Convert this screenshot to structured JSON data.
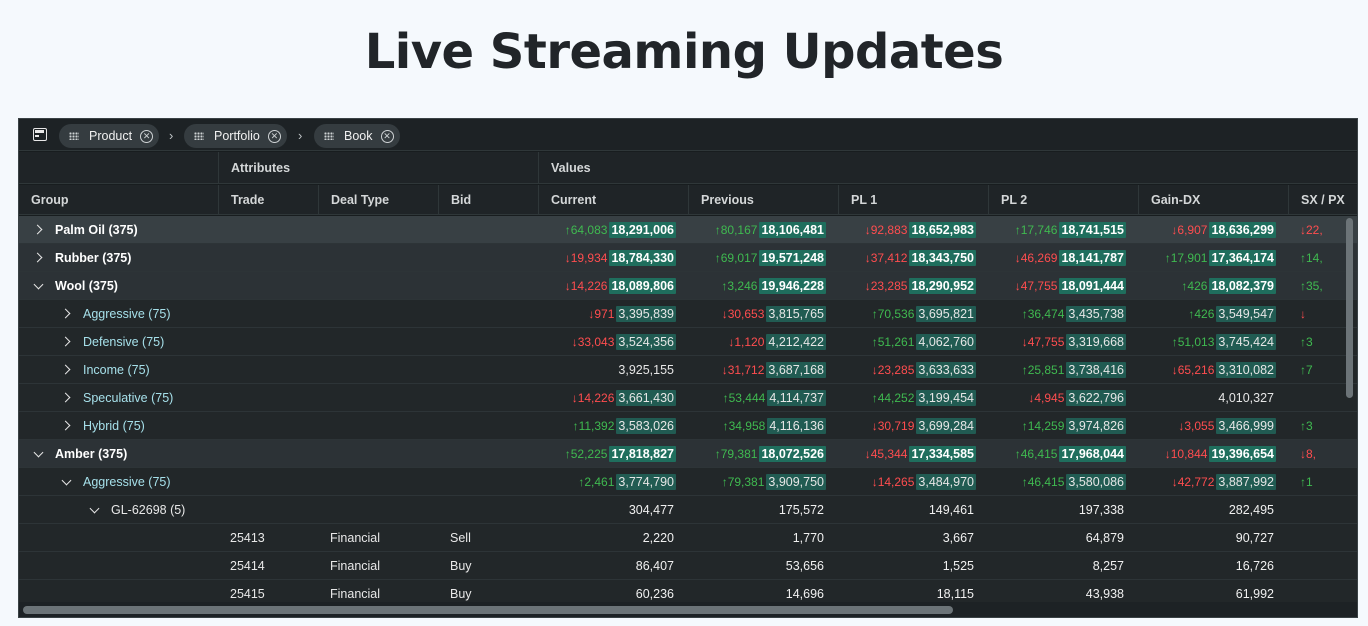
{
  "page_title": "Live Streaming Updates",
  "group_bar": {
    "chips": [
      {
        "label": "Product"
      },
      {
        "label": "Portfolio"
      },
      {
        "label": "Book"
      }
    ],
    "separator": "›"
  },
  "header": {
    "column_groups": [
      "Attributes",
      "Values"
    ],
    "columns": [
      "Group",
      "Trade",
      "Deal Type",
      "Bid",
      "Current",
      "Previous",
      "PL 1",
      "PL 2",
      "Gain-DX",
      "SX / PX"
    ]
  },
  "colors": {
    "up": "#3fb950",
    "down": "#ff4d4f",
    "highlight": "#1f6e5d"
  },
  "rows": [
    {
      "level": 1,
      "expanded": false,
      "label": "Palm Oil (375)",
      "cells": [
        {
          "d": "↑64,083",
          "dir": "up",
          "v": "18,291,006",
          "hl": true
        },
        {
          "d": "↑80,167",
          "dir": "up",
          "v": "18,106,481",
          "hl": true
        },
        {
          "d": "↓92,883",
          "dir": "down",
          "v": "18,652,983",
          "hl": true
        },
        {
          "d": "↑17,746",
          "dir": "up",
          "v": "18,741,515",
          "hl": true
        },
        {
          "d": "↓6,907",
          "dir": "down",
          "v": "18,636,299",
          "hl": true
        },
        {
          "d": "↓22,",
          "dir": "down",
          "v": "",
          "hl": false
        }
      ]
    },
    {
      "level": 1,
      "expanded": false,
      "label": "Rubber (375)",
      "cells": [
        {
          "d": "↓19,934",
          "dir": "down",
          "v": "18,784,330",
          "hl": true
        },
        {
          "d": "↑69,017",
          "dir": "up",
          "v": "19,571,248",
          "hl": true
        },
        {
          "d": "↓37,412",
          "dir": "down",
          "v": "18,343,750",
          "hl": true
        },
        {
          "d": "↓46,269",
          "dir": "down",
          "v": "18,141,787",
          "hl": true
        },
        {
          "d": "↑17,901",
          "dir": "up",
          "v": "17,364,174",
          "hl": true
        },
        {
          "d": "↑14,",
          "dir": "up",
          "v": "",
          "hl": false
        }
      ]
    },
    {
      "level": 1,
      "expanded": true,
      "label": "Wool (375)",
      "cells": [
        {
          "d": "↓14,226",
          "dir": "down",
          "v": "18,089,806",
          "hl": true
        },
        {
          "d": "↑3,246",
          "dir": "up",
          "v": "19,946,228",
          "hl": true
        },
        {
          "d": "↓23,285",
          "dir": "down",
          "v": "18,290,952",
          "hl": true
        },
        {
          "d": "↓47,755",
          "dir": "down",
          "v": "18,091,444",
          "hl": true
        },
        {
          "d": "↑426",
          "dir": "up",
          "v": "18,082,379",
          "hl": true
        },
        {
          "d": "↑35,",
          "dir": "up",
          "v": "",
          "hl": false
        }
      ]
    },
    {
      "level": 2,
      "expanded": false,
      "label": "Aggressive (75)",
      "cells": [
        {
          "d": "↓971",
          "dir": "down",
          "v": "3,395,839",
          "hl": true
        },
        {
          "d": "↓30,653",
          "dir": "down",
          "v": "3,815,765",
          "hl": true
        },
        {
          "d": "↑70,536",
          "dir": "up",
          "v": "3,695,821",
          "hl": true
        },
        {
          "d": "↑36,474",
          "dir": "up",
          "v": "3,435,738",
          "hl": true
        },
        {
          "d": "↑426",
          "dir": "up",
          "v": "3,549,547",
          "hl": true
        },
        {
          "d": "↓",
          "dir": "down",
          "v": "",
          "hl": false
        }
      ]
    },
    {
      "level": 2,
      "expanded": false,
      "label": "Defensive (75)",
      "cells": [
        {
          "d": "↓33,043",
          "dir": "down",
          "v": "3,524,356",
          "hl": true
        },
        {
          "d": "↓1,120",
          "dir": "down",
          "v": "4,212,422",
          "hl": true
        },
        {
          "d": "↑51,261",
          "dir": "up",
          "v": "4,062,760",
          "hl": true
        },
        {
          "d": "↓47,755",
          "dir": "down",
          "v": "3,319,668",
          "hl": true
        },
        {
          "d": "↑51,013",
          "dir": "up",
          "v": "3,745,424",
          "hl": true
        },
        {
          "d": "↑3",
          "dir": "up",
          "v": "",
          "hl": false
        }
      ]
    },
    {
      "level": 2,
      "expanded": false,
      "label": "Income (75)",
      "cells": [
        {
          "d": "",
          "dir": "",
          "v": "3,925,155",
          "hl": false
        },
        {
          "d": "↓31,712",
          "dir": "down",
          "v": "3,687,168",
          "hl": true
        },
        {
          "d": "↓23,285",
          "dir": "down",
          "v": "3,633,633",
          "hl": true
        },
        {
          "d": "↑25,851",
          "dir": "up",
          "v": "3,738,416",
          "hl": true
        },
        {
          "d": "↓65,216",
          "dir": "down",
          "v": "3,310,082",
          "hl": true
        },
        {
          "d": "↑7",
          "dir": "up",
          "v": "",
          "hl": false
        }
      ]
    },
    {
      "level": 2,
      "expanded": false,
      "label": "Speculative (75)",
      "cells": [
        {
          "d": "↓14,226",
          "dir": "down",
          "v": "3,661,430",
          "hl": true
        },
        {
          "d": "↑53,444",
          "dir": "up",
          "v": "4,114,737",
          "hl": true
        },
        {
          "d": "↑44,252",
          "dir": "up",
          "v": "3,199,454",
          "hl": true
        },
        {
          "d": "↓4,945",
          "dir": "down",
          "v": "3,622,796",
          "hl": true
        },
        {
          "d": "",
          "dir": "",
          "v": "4,010,327",
          "hl": false
        },
        {
          "d": "",
          "dir": "",
          "v": "",
          "hl": false
        }
      ]
    },
    {
      "level": 2,
      "expanded": false,
      "label": "Hybrid (75)",
      "cells": [
        {
          "d": "↑11,392",
          "dir": "up",
          "v": "3,583,026",
          "hl": true
        },
        {
          "d": "↑34,958",
          "dir": "up",
          "v": "4,116,136",
          "hl": true
        },
        {
          "d": "↓30,719",
          "dir": "down",
          "v": "3,699,284",
          "hl": true
        },
        {
          "d": "↑14,259",
          "dir": "up",
          "v": "3,974,826",
          "hl": true
        },
        {
          "d": "↓3,055",
          "dir": "down",
          "v": "3,466,999",
          "hl": true
        },
        {
          "d": "↑3",
          "dir": "up",
          "v": "",
          "hl": false
        }
      ]
    },
    {
      "level": 1,
      "expanded": true,
      "label": "Amber (375)",
      "cells": [
        {
          "d": "↑52,225",
          "dir": "up",
          "v": "17,818,827",
          "hl": true
        },
        {
          "d": "↑79,381",
          "dir": "up",
          "v": "18,072,526",
          "hl": true
        },
        {
          "d": "↓45,344",
          "dir": "down",
          "v": "17,334,585",
          "hl": true
        },
        {
          "d": "↑46,415",
          "dir": "up",
          "v": "17,968,044",
          "hl": true
        },
        {
          "d": "↓10,844",
          "dir": "down",
          "v": "19,396,654",
          "hl": true
        },
        {
          "d": "↓8,",
          "dir": "down",
          "v": "",
          "hl": false
        }
      ]
    },
    {
      "level": 2,
      "expanded": true,
      "label": "Aggressive (75)",
      "cells": [
        {
          "d": "↑2,461",
          "dir": "up",
          "v": "3,774,790",
          "hl": true
        },
        {
          "d": "↑79,381",
          "dir": "up",
          "v": "3,909,750",
          "hl": true
        },
        {
          "d": "↓14,265",
          "dir": "down",
          "v": "3,484,970",
          "hl": true
        },
        {
          "d": "↑46,415",
          "dir": "up",
          "v": "3,580,086",
          "hl": true
        },
        {
          "d": "↓42,772",
          "dir": "down",
          "v": "3,887,992",
          "hl": true
        },
        {
          "d": "↑1",
          "dir": "up",
          "v": "",
          "hl": false
        }
      ]
    },
    {
      "level": 3,
      "expanded": true,
      "label": "GL-62698 (5)",
      "cells": [
        {
          "d": "",
          "dir": "",
          "v": "304,477",
          "hl": false
        },
        {
          "d": "",
          "dir": "",
          "v": "175,572",
          "hl": false
        },
        {
          "d": "",
          "dir": "",
          "v": "149,461",
          "hl": false
        },
        {
          "d": "",
          "dir": "",
          "v": "197,338",
          "hl": false
        },
        {
          "d": "",
          "dir": "",
          "v": "282,495",
          "hl": false
        },
        {
          "d": "",
          "dir": "",
          "v": "",
          "hl": false
        }
      ]
    },
    {
      "level": 4,
      "trade": "25413",
      "deal_type": "Financial",
      "bid": "Sell",
      "cells": [
        {
          "d": "",
          "dir": "",
          "v": "2,220",
          "hl": false
        },
        {
          "d": "",
          "dir": "",
          "v": "1,770",
          "hl": false
        },
        {
          "d": "",
          "dir": "",
          "v": "3,667",
          "hl": false
        },
        {
          "d": "",
          "dir": "",
          "v": "64,879",
          "hl": false
        },
        {
          "d": "",
          "dir": "",
          "v": "90,727",
          "hl": false
        },
        {
          "d": "",
          "dir": "",
          "v": "",
          "hl": false
        }
      ]
    },
    {
      "level": 4,
      "trade": "25414",
      "deal_type": "Financial",
      "bid": "Buy",
      "cells": [
        {
          "d": "",
          "dir": "",
          "v": "86,407",
          "hl": false
        },
        {
          "d": "",
          "dir": "",
          "v": "53,656",
          "hl": false
        },
        {
          "d": "",
          "dir": "",
          "v": "1,525",
          "hl": false
        },
        {
          "d": "",
          "dir": "",
          "v": "8,257",
          "hl": false
        },
        {
          "d": "",
          "dir": "",
          "v": "16,726",
          "hl": false
        },
        {
          "d": "",
          "dir": "",
          "v": "",
          "hl": false
        }
      ]
    },
    {
      "level": 4,
      "trade": "25415",
      "deal_type": "Financial",
      "bid": "Buy",
      "cells": [
        {
          "d": "",
          "dir": "",
          "v": "60,236",
          "hl": false
        },
        {
          "d": "",
          "dir": "",
          "v": "14,696",
          "hl": false
        },
        {
          "d": "",
          "dir": "",
          "v": "18,115",
          "hl": false
        },
        {
          "d": "",
          "dir": "",
          "v": "43,938",
          "hl": false
        },
        {
          "d": "",
          "dir": "",
          "v": "61,992",
          "hl": false
        },
        {
          "d": "",
          "dir": "",
          "v": "",
          "hl": false
        }
      ]
    }
  ]
}
